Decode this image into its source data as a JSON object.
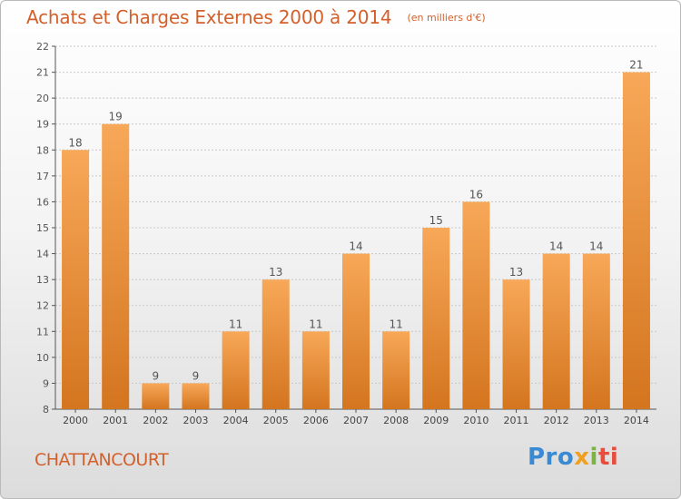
{
  "header": {
    "title": "Achats et Charges Externes 2000 à 2014",
    "subtitle": "(en milliers d'€)"
  },
  "footer": {
    "location": "CHATTANCOURT",
    "brand_parts": [
      "Pro",
      "x",
      "i",
      "ti"
    ]
  },
  "colors": {
    "bar_top": "#f7a858",
    "bar_bottom": "#d4751f",
    "title": "#d3602a",
    "grid": "#c8c8c8"
  },
  "chart_data": {
    "type": "bar",
    "categories": [
      "2000",
      "2001",
      "2002",
      "2003",
      "2004",
      "2005",
      "2006",
      "2007",
      "2008",
      "2009",
      "2010",
      "2011",
      "2012",
      "2013",
      "2014"
    ],
    "values": [
      18,
      19,
      9,
      9,
      11,
      13,
      11,
      14,
      11,
      15,
      16,
      13,
      14,
      14,
      21
    ],
    "title": "Achats et Charges Externes 2000 à 2014",
    "subtitle": "(en milliers d'€)",
    "xlabel": "",
    "ylabel": "",
    "ylim": [
      8,
      22
    ],
    "yticks": [
      8,
      9,
      10,
      11,
      12,
      13,
      14,
      15,
      16,
      17,
      18,
      19,
      20,
      21,
      22
    ],
    "grid": true,
    "data_labels": true
  }
}
